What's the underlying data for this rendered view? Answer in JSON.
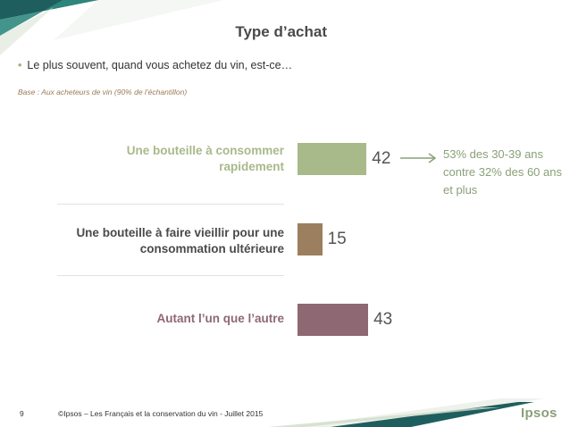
{
  "slide": {
    "title": "Type d’achat",
    "question": "Le plus souvent, quand vous achetez du vin, est-ce…",
    "base_note": "Base : Aux acheteurs de vin (90% de l’échantillon)",
    "annotation": "53% des 30-39 ans contre 32% des 60 ans et plus",
    "page_number": "9",
    "footer": "©Ipsos – Les Français et la conservation du vin - Juillet 2015",
    "logo": "Ipsos"
  },
  "colors": {
    "bar1": "#a8b98a",
    "bar2": "#9b7f5e",
    "bar3": "#8e6872",
    "label1": "#a8b98a",
    "label2": "#4a4a4a",
    "label3": "#8e6872",
    "accent": "#8aa078",
    "teal": "#1f6b6b"
  },
  "chart_data": {
    "type": "bar",
    "orientation": "horizontal",
    "categories": [
      "Une bouteille à consommer rapidement",
      "Une bouteille à faire vieillir pour une consommation ultérieure",
      "Autant l’un que l’autre"
    ],
    "values": [
      42,
      15,
      43
    ],
    "value_labels": [
      "42",
      "15",
      "43"
    ],
    "xlim": [
      0,
      100
    ],
    "grid": false,
    "legend": "none"
  }
}
